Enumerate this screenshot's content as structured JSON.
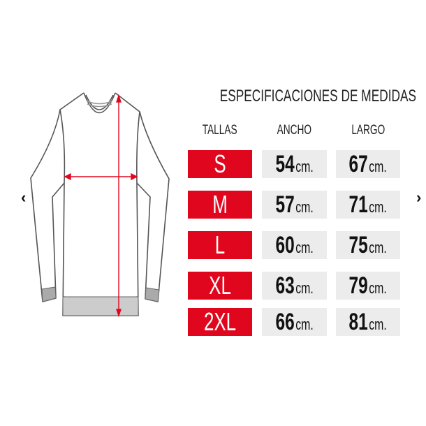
{
  "carousel": {
    "prev_icon": "chevron-left-icon",
    "next_icon": "chevron-right-icon",
    "prev_glyph": "‹",
    "next_glyph": "›"
  },
  "chart": {
    "title": "ESPECIFICACIONES DE MEDIDAS",
    "headers": {
      "size": "TALLAS",
      "width": "ANCHO",
      "length": "LARGO"
    },
    "unit": "cm.",
    "rows": [
      {
        "size": "S",
        "width": "54",
        "length": "67"
      },
      {
        "size": "M",
        "width": "57",
        "length": "71"
      },
      {
        "size": "L",
        "width": "60",
        "length": "75"
      },
      {
        "size": "XL",
        "width": "63",
        "length": "79"
      },
      {
        "size": "2XL",
        "width": "66",
        "length": "81"
      }
    ],
    "colors": {
      "size_bg": "#e0061e",
      "measure_bg": "#ececec",
      "arrow": "#e0061e"
    }
  }
}
